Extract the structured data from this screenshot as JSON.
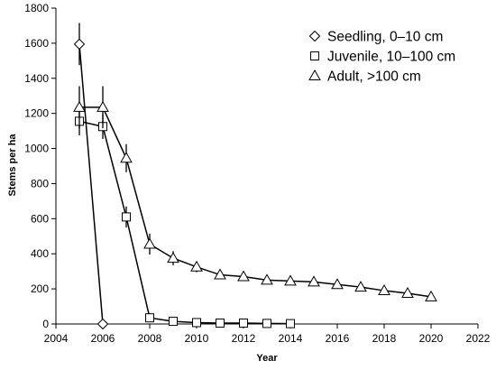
{
  "chart_data": {
    "type": "scatter",
    "title": "",
    "xlabel": "Year",
    "ylabel": "Stems per ha",
    "xlim": [
      2004,
      2022
    ],
    "ylim": [
      0,
      1800
    ],
    "x_ticks": [
      2004,
      2006,
      2008,
      2010,
      2012,
      2014,
      2016,
      2018,
      2020,
      2022
    ],
    "y_ticks": [
      0,
      200,
      400,
      600,
      800,
      1000,
      1200,
      1400,
      1600,
      1800
    ],
    "grid": false,
    "legend_position": "top-right",
    "colors": {
      "series": "#000000",
      "background": "#ffffff"
    },
    "series": [
      {
        "name": "Seedling, 0–10 cm",
        "marker": "diamond",
        "x": [
          2005,
          2006
        ],
        "y": [
          1595,
          0
        ],
        "err": [
          120,
          0
        ]
      },
      {
        "name": "Juvenile, 10–100 cm",
        "marker": "square",
        "x": [
          2005,
          2006,
          2007,
          2008,
          2009,
          2010,
          2011,
          2012,
          2013,
          2014
        ],
        "y": [
          1155,
          1125,
          610,
          35,
          15,
          8,
          5,
          5,
          3,
          2
        ],
        "err": [
          80,
          70,
          60,
          10,
          0,
          0,
          0,
          0,
          0,
          0
        ]
      },
      {
        "name": "Adult, >100 cm",
        "marker": "triangle",
        "x": [
          2005,
          2006,
          2007,
          2008,
          2009,
          2010,
          2011,
          2012,
          2013,
          2014,
          2015,
          2016,
          2017,
          2018,
          2019,
          2020
        ],
        "y": [
          1235,
          1235,
          945,
          455,
          375,
          325,
          280,
          270,
          250,
          245,
          240,
          225,
          210,
          190,
          175,
          155
        ],
        "err": [
          120,
          120,
          80,
          60,
          40,
          30,
          25,
          20,
          20,
          20,
          20,
          20,
          20,
          20,
          15,
          0
        ]
      }
    ]
  }
}
